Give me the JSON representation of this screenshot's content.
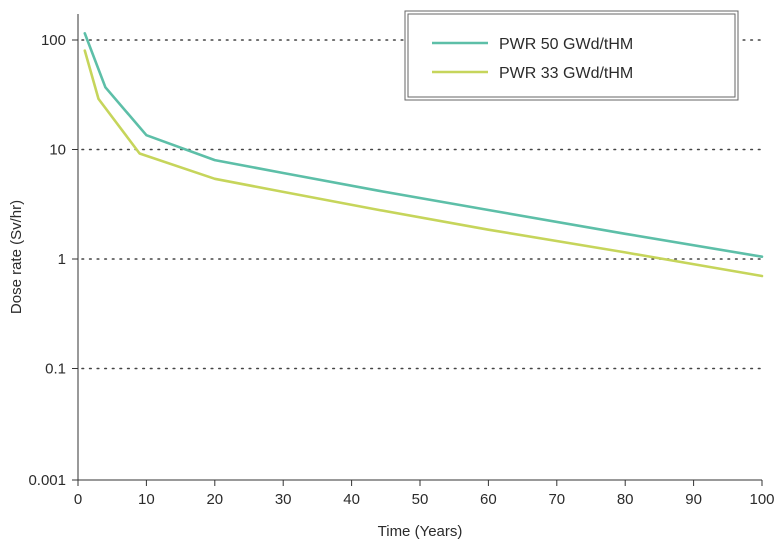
{
  "chart_data": {
    "type": "line",
    "xlabel": "Time (Years)",
    "ylabel": "Dose rate (Sv/hr)",
    "x_ticks": [
      0,
      10,
      20,
      30,
      40,
      50,
      60,
      70,
      80,
      90,
      100
    ],
    "x_tick_labels": [
      "0",
      "10",
      "20",
      "30",
      "40",
      "50",
      "60",
      "70",
      "80",
      "90",
      "100"
    ],
    "y_ticks": [
      0.001,
      0.1,
      1,
      10,
      100
    ],
    "y_tick_labels": [
      "0.001",
      "0.1",
      "1",
      "10",
      "100"
    ],
    "xlim": [
      0,
      100
    ],
    "y_scale": "log (irregular: 0.001 tick placed at one decade below 0.1)",
    "ylim_display": [
      0.001,
      150
    ],
    "grid": "horizontal dotted lines at 0.1, 1, 10, 100",
    "legend_position": "top-right",
    "series": [
      {
        "name": "PWR 50 GWd/tHM",
        "color": "#5dbfa8",
        "points": [
          [
            1,
            115
          ],
          [
            4,
            37
          ],
          [
            10,
            13.5
          ],
          [
            20,
            8
          ],
          [
            30,
            6.1
          ],
          [
            44,
            4.2
          ],
          [
            60,
            2.8
          ],
          [
            80,
            1.7
          ],
          [
            100,
            1.05
          ]
        ]
      },
      {
        "name": "PWR 33 GWd/tHM",
        "color": "#c6d55b",
        "points": [
          [
            1,
            80
          ],
          [
            3,
            29
          ],
          [
            9,
            9.2
          ],
          [
            20,
            5.4
          ],
          [
            30,
            4.1
          ],
          [
            44,
            2.8
          ],
          [
            60,
            1.85
          ],
          [
            80,
            1.15
          ],
          [
            100,
            0.7
          ]
        ]
      }
    ]
  }
}
